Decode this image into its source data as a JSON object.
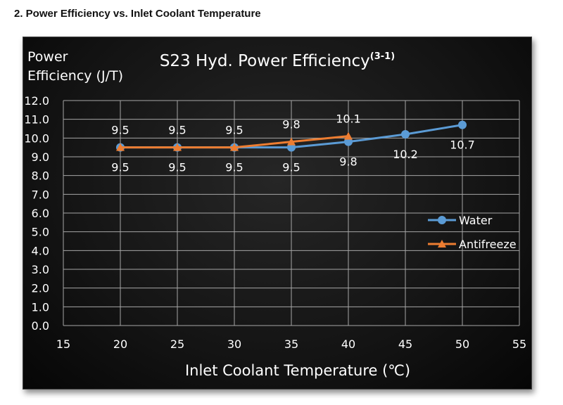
{
  "page": {
    "heading": "2. Power Efficiency vs. Inlet Coolant Temperature"
  },
  "chart_data": {
    "type": "line",
    "title": "S23 Hyd. Power Efficiency",
    "title_superscript": "(3-1)",
    "ylabel_line1": "Power",
    "ylabel_line2": "Efficiency (J/T)",
    "xlabel": "Inlet Coolant Temperature (℃)",
    "xlim": [
      15,
      55
    ],
    "ylim": [
      0,
      12
    ],
    "x_ticks": [
      "15",
      "20",
      "25",
      "30",
      "35",
      "40",
      "45",
      "50",
      "55"
    ],
    "y_ticks": [
      "0.0",
      "1.0",
      "2.0",
      "3.0",
      "4.0",
      "5.0",
      "6.0",
      "7.0",
      "8.0",
      "9.0",
      "10.0",
      "11.0",
      "12.0"
    ],
    "grid": true,
    "legend_position": "right",
    "series": [
      {
        "name": "Water",
        "color": "#5b9bd5",
        "marker": "circle",
        "label_position": "below",
        "x": [
          20,
          25,
          30,
          35,
          40,
          45,
          50
        ],
        "values": [
          9.5,
          9.5,
          9.5,
          9.5,
          9.8,
          10.2,
          10.7
        ],
        "labels": [
          "9.5",
          "9.5",
          "9.5",
          "9.5",
          "9.8",
          "10.2",
          "10.7"
        ]
      },
      {
        "name": "Antifreeze",
        "color": "#ed7d31",
        "marker": "triangle",
        "label_position": "above",
        "x": [
          20,
          25,
          30,
          35,
          40
        ],
        "values": [
          9.5,
          9.5,
          9.5,
          9.8,
          10.1
        ],
        "labels": [
          "9.5",
          "9.5",
          "9.5",
          "9.8",
          "10.1"
        ]
      }
    ]
  }
}
